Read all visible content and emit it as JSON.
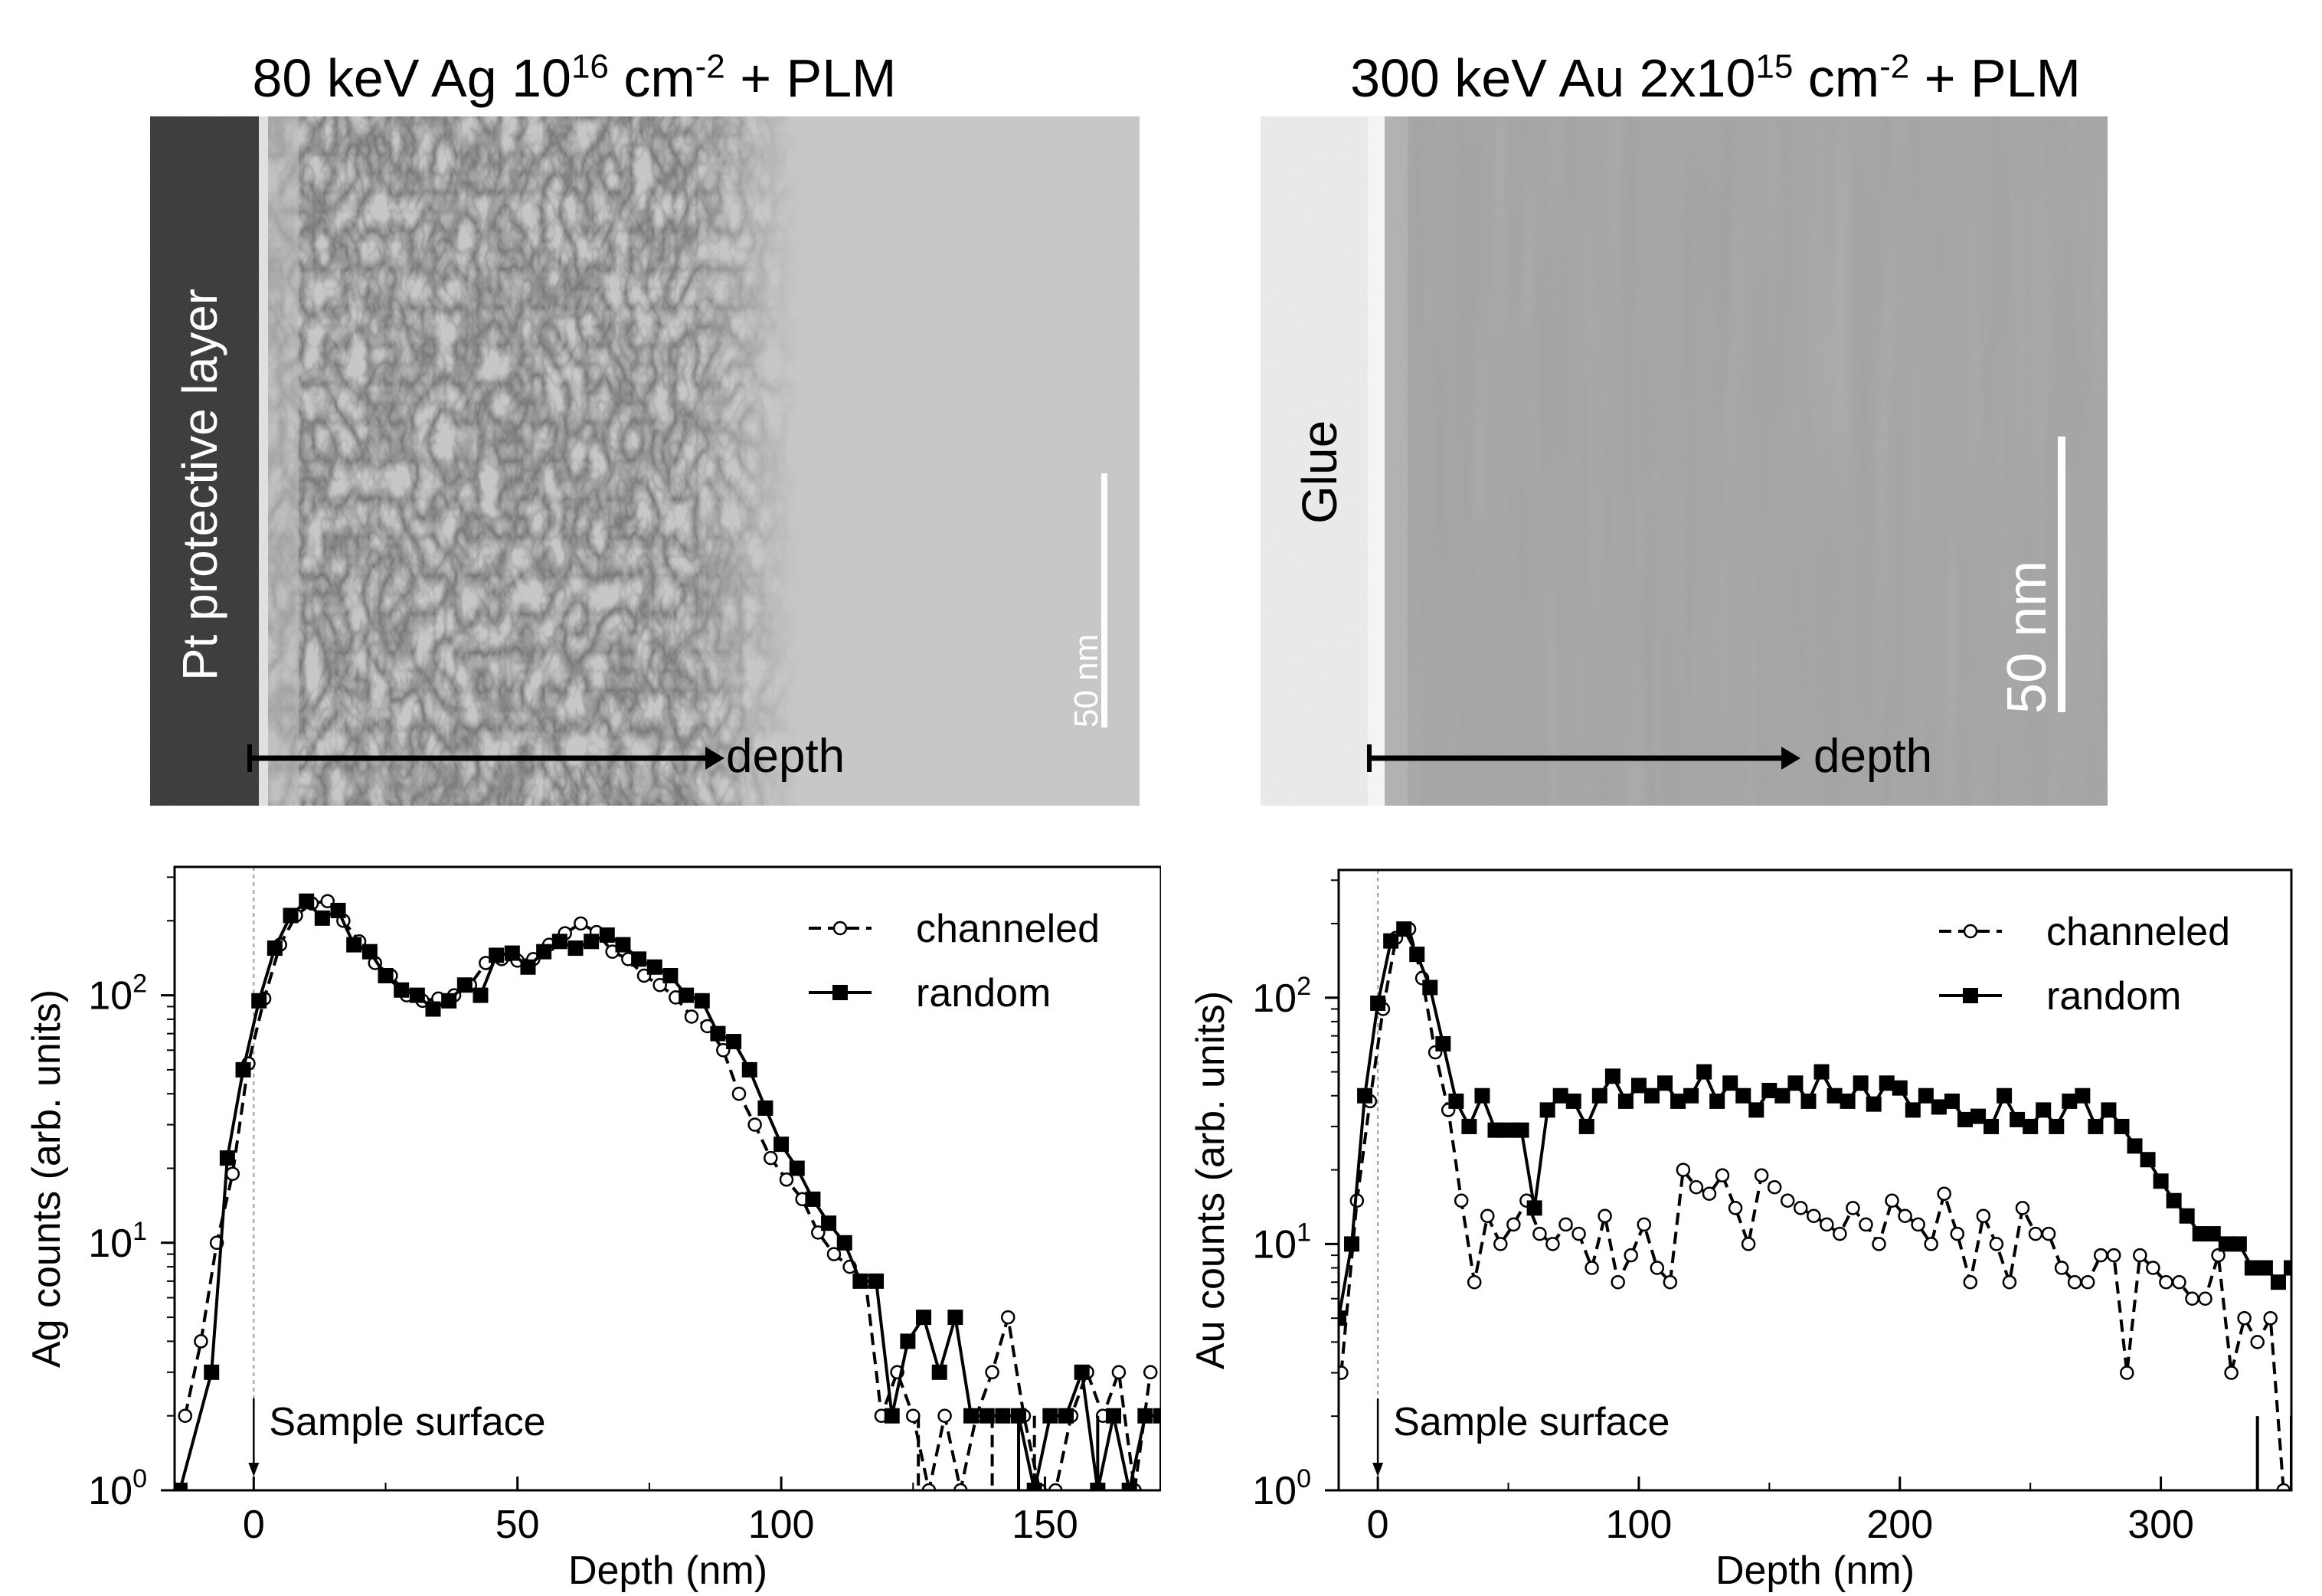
{
  "colors": {
    "ink": "#000000",
    "background": "#ffffff",
    "tem_left": "#c9c9c9",
    "tem_right": "#a4a4a4",
    "pt_layer": "#2e2e2e",
    "glue": "#eeeeee"
  },
  "micrographs": [
    {
      "title_main": "80 keV Ag 10",
      "title_sup1": "16",
      "title_mid": " cm",
      "title_sup2": "-2",
      "title_end": " + PLM",
      "layer_label": "Pt protective layer",
      "arrow_label": "depth",
      "scale_label": "50 nm"
    },
    {
      "title_main": "300 keV Au 2x10",
      "title_sup1": "15",
      "title_mid": " cm",
      "title_sup2": "-2",
      "title_end": " + PLM",
      "layer_label": "Glue",
      "arrow_label": "depth",
      "scale_label": "50 nm"
    }
  ],
  "chart_data": [
    {
      "type": "line",
      "yscale": "log",
      "xlabel": "Depth (nm)",
      "ylabel": "Ag counts (arb. units)",
      "xlim": [
        -15,
        172
      ],
      "ylim": [
        1,
        330
      ],
      "xticks": [
        0,
        50,
        100,
        150
      ],
      "xtick_labels": [
        "0",
        "50",
        "100",
        "150"
      ],
      "yticks": [
        1,
        10,
        100
      ],
      "ytick_labels": [
        [
          "10",
          "0"
        ],
        [
          "10",
          "1"
        ],
        [
          "10",
          "2"
        ]
      ],
      "annotation": "Sample surface",
      "legend": {
        "location": "top-right",
        "entries": [
          "channeled",
          "random"
        ]
      },
      "series": [
        {
          "name": "channeled",
          "style": "dashed",
          "marker": "open-circle",
          "x": [
            -13,
            -10,
            -7,
            -4,
            -1,
            2,
            5,
            8,
            11,
            14,
            17,
            20,
            23,
            26,
            29,
            32,
            35,
            38,
            41,
            44,
            47,
            50,
            53,
            56,
            59,
            62,
            65,
            68,
            71,
            74,
            77,
            80,
            83,
            86,
            89,
            92,
            95,
            98,
            101,
            104,
            107,
            110,
            113,
            116,
            119,
            122,
            125,
            128,
            131,
            134,
            137,
            140,
            143,
            146,
            149,
            152,
            155,
            158,
            161,
            164,
            167,
            170
          ],
          "y": [
            2,
            4,
            10,
            19,
            53,
            97,
            160,
            210,
            235,
            240,
            200,
            165,
            135,
            120,
            100,
            95,
            97,
            100,
            110,
            135,
            140,
            138,
            140,
            160,
            178,
            195,
            180,
            150,
            140,
            120,
            110,
            98,
            82,
            75,
            60,
            40,
            30,
            22,
            18,
            15,
            11,
            9,
            8,
            7,
            2,
            3,
            2,
            1,
            2,
            1,
            2,
            3,
            5,
            2,
            1,
            1,
            2,
            3,
            2,
            3,
            1,
            3
          ],
          "dips_below_axis_x": [
            126,
            140,
            148
          ]
        },
        {
          "name": "random",
          "style": "solid",
          "marker": "filled-square",
          "x": [
            -14,
            -8,
            -5,
            -2,
            1,
            4,
            7,
            10,
            13,
            16,
            19,
            22,
            25,
            28,
            31,
            34,
            37,
            40,
            43,
            46,
            49,
            52,
            55,
            58,
            61,
            64,
            67,
            70,
            73,
            76,
            79,
            82,
            85,
            88,
            91,
            94,
            97,
            100,
            103,
            106,
            109,
            112,
            115,
            118,
            121,
            124,
            127,
            130,
            133,
            136,
            139,
            142,
            145,
            148,
            151,
            154,
            157,
            160,
            163,
            166,
            169,
            172
          ],
          "y": [
            1,
            3,
            22,
            50,
            95,
            155,
            210,
            240,
            205,
            220,
            160,
            150,
            120,
            105,
            100,
            88,
            95,
            110,
            100,
            145,
            148,
            130,
            150,
            165,
            155,
            165,
            175,
            160,
            140,
            130,
            120,
            100,
            95,
            70,
            65,
            50,
            35,
            25,
            20,
            15,
            12,
            10,
            7,
            7,
            2,
            4,
            5,
            3,
            5,
            2,
            2,
            2,
            2,
            1,
            2,
            2,
            3,
            1,
            2,
            1,
            2,
            2
          ],
          "drops_below_axis_x": [
            172,
            145,
            160
          ]
        }
      ]
    },
    {
      "type": "line",
      "yscale": "log",
      "xlabel": "Depth (nm)",
      "ylabel": "Au counts (arb. units)",
      "xlim": [
        -15,
        350
      ],
      "ylim": [
        1,
        330
      ],
      "xticks": [
        0,
        100,
        200,
        300
      ],
      "xtick_labels": [
        "0",
        "100",
        "200",
        "300"
      ],
      "yticks": [
        1,
        10,
        100
      ],
      "ytick_labels": [
        [
          "10",
          "0"
        ],
        [
          "10",
          "1"
        ],
        [
          "10",
          "2"
        ]
      ],
      "annotation": "Sample surface",
      "legend": {
        "location": "top-right",
        "entries": [
          "channeled",
          "random"
        ]
      },
      "series": [
        {
          "name": "channeled",
          "style": "dashed",
          "marker": "open-circle",
          "x": [
            -14,
            -8,
            -3,
            2,
            7,
            12,
            17,
            22,
            27,
            32,
            37,
            42,
            47,
            52,
            57,
            62,
            67,
            72,
            77,
            82,
            87,
            92,
            97,
            102,
            107,
            112,
            117,
            122,
            127,
            132,
            137,
            142,
            147,
            152,
            157,
            162,
            167,
            172,
            177,
            182,
            187,
            192,
            197,
            202,
            207,
            212,
            217,
            222,
            227,
            232,
            237,
            242,
            247,
            252,
            257,
            262,
            267,
            272,
            277,
            282,
            287,
            292,
            297,
            302,
            307,
            312,
            317,
            322,
            327,
            332,
            337,
            342,
            347
          ],
          "y": [
            3,
            15,
            38,
            90,
            175,
            190,
            120,
            60,
            35,
            15,
            7,
            13,
            10,
            12,
            15,
            11,
            10,
            12,
            11,
            8,
            13,
            7,
            9,
            12,
            8,
            7,
            20,
            17,
            16,
            19,
            14,
            10,
            19,
            17,
            15,
            14,
            13,
            12,
            11,
            14,
            12,
            10,
            15,
            13,
            12,
            10,
            16,
            11,
            7,
            13,
            10,
            7,
            14,
            11,
            11,
            8,
            7,
            7,
            9,
            9,
            3,
            9,
            8,
            7,
            7,
            6,
            6,
            9,
            3,
            5,
            4,
            5,
            1
          ],
          "dips_below_axis_x": []
        },
        {
          "name": "random",
          "style": "solid",
          "marker": "filled-square",
          "x": [
            -15,
            -10,
            -5,
            0,
            5,
            10,
            15,
            20,
            25,
            30,
            35,
            40,
            45,
            50,
            55,
            60,
            65,
            70,
            75,
            80,
            85,
            90,
            95,
            100,
            105,
            110,
            115,
            120,
            125,
            130,
            135,
            140,
            145,
            150,
            155,
            160,
            165,
            170,
            175,
            180,
            185,
            190,
            195,
            200,
            205,
            210,
            215,
            220,
            225,
            230,
            235,
            240,
            245,
            250,
            255,
            260,
            265,
            270,
            275,
            280,
            285,
            290,
            295,
            300,
            305,
            310,
            315,
            320,
            325,
            330,
            335,
            340,
            345,
            350
          ],
          "y": [
            5,
            10,
            40,
            95,
            170,
            190,
            150,
            110,
            65,
            38,
            30,
            40,
            29,
            29,
            29,
            14,
            35,
            40,
            38,
            30,
            40,
            48,
            38,
            44,
            40,
            45,
            38,
            40,
            50,
            38,
            45,
            40,
            35,
            42,
            40,
            45,
            38,
            50,
            40,
            38,
            45,
            37,
            45,
            43,
            35,
            40,
            36,
            38,
            32,
            33,
            30,
            40,
            32,
            30,
            35,
            30,
            38,
            40,
            30,
            35,
            30,
            25,
            22,
            18,
            15,
            13,
            11,
            11,
            10,
            10,
            8,
            8,
            7,
            8
          ],
          "drops_below_axis_x": [
            337,
            350
          ]
        }
      ]
    }
  ]
}
